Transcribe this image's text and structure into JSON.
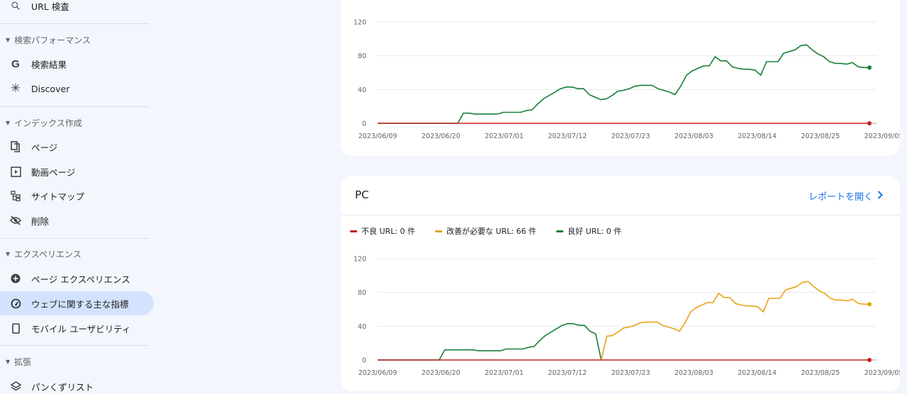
{
  "sidebar": {
    "top_item": {
      "label": "URL 検査",
      "icon": "search-icon"
    },
    "sections": [
      {
        "title": "検索パフォーマンス",
        "items": [
          {
            "label": "検索結果",
            "icon": "google-g-icon"
          },
          {
            "label": "Discover",
            "icon": "asterisk-icon"
          }
        ]
      },
      {
        "title": "インデックス作成",
        "items": [
          {
            "label": "ページ",
            "icon": "pages-icon"
          },
          {
            "label": "動画ページ",
            "icon": "video-page-icon"
          },
          {
            "label": "サイトマップ",
            "icon": "sitemap-icon"
          },
          {
            "label": "削除",
            "icon": "eye-off-icon"
          }
        ]
      },
      {
        "title": "エクスペリエンス",
        "items": [
          {
            "label": "ページ エクスペリエンス",
            "icon": "plus-circle-icon"
          },
          {
            "label": "ウェブに関する主な指標",
            "icon": "speed-gauge-icon",
            "active": true
          },
          {
            "label": "モバイル ユーザビリティ",
            "icon": "phone-icon"
          }
        ]
      },
      {
        "title": "拡張",
        "items": [
          {
            "label": "パンくずリスト",
            "icon": "layers-icon"
          }
        ]
      }
    ]
  },
  "colors": {
    "poor": "#c5221f",
    "needs_improvement": "#e8a317",
    "good": "#188038",
    "accent": "#1a73e8",
    "active_bg": "#d3e3fd"
  },
  "card_pc": {
    "title": "PC",
    "open_report": "レポートを開く",
    "legend": {
      "poor": "不良 URL: 0 件",
      "needs_improvement": "改善が必要な URL: 66 件",
      "good": "良好 URL: 0 件"
    }
  },
  "chart_data": [
    {
      "type": "line",
      "title": "",
      "xlabel": "",
      "ylabel": "",
      "x_ticks": [
        "2023/06/09",
        "2023/06/20",
        "2023/07/01",
        "2023/07/12",
        "2023/07/23",
        "2023/08/03",
        "2023/08/14",
        "2023/08/25",
        "2023/09/05"
      ],
      "ylim": [
        0,
        120
      ],
      "y_ticks": [
        0,
        40,
        80,
        120
      ],
      "grid": true,
      "series": [
        {
          "key": "good",
          "values": [
            0,
            0,
            0,
            0,
            0,
            0,
            0,
            0,
            0,
            0,
            0,
            0,
            0,
            0,
            0,
            12,
            12,
            11,
            11,
            11,
            11,
            11,
            13,
            13,
            13,
            13,
            15,
            16,
            23,
            29,
            33,
            37,
            41,
            43,
            43,
            41,
            41,
            34,
            31,
            28,
            29,
            33,
            38,
            39,
            41,
            44,
            45,
            45,
            45,
            41,
            39,
            37,
            34,
            44,
            57,
            62,
            65,
            68,
            68,
            79,
            74,
            74,
            67,
            65,
            64,
            64,
            63,
            57,
            73,
            73,
            73,
            83,
            85,
            87,
            92,
            93,
            87,
            82,
            79,
            73,
            71,
            71,
            70,
            72,
            67,
            66,
            66
          ]
        },
        {
          "key": "poor",
          "values": [
            0,
            0,
            0,
            0,
            0,
            0,
            0,
            0,
            0,
            0,
            0,
            0,
            0,
            0,
            0,
            0,
            0,
            0,
            0,
            0,
            0,
            0,
            0,
            0,
            0,
            0,
            0,
            0,
            0,
            0,
            0,
            0,
            0,
            0,
            0,
            0,
            0,
            0,
            0,
            0,
            0,
            0,
            0,
            0,
            0,
            0,
            0,
            0,
            0,
            0,
            0,
            0,
            0,
            0,
            0,
            0,
            0,
            0,
            0,
            0,
            0,
            0,
            0,
            0,
            0,
            0,
            0,
            0,
            0,
            0,
            0,
            0,
            0,
            0,
            0,
            0,
            0,
            0,
            0,
            0,
            0,
            0,
            0,
            0,
            0,
            0,
            0
          ]
        }
      ]
    },
    {
      "type": "line",
      "title": "",
      "xlabel": "",
      "ylabel": "",
      "x_ticks": [
        "2023/06/09",
        "2023/06/20",
        "2023/07/01",
        "2023/07/12",
        "2023/07/23",
        "2023/08/03",
        "2023/08/14",
        "2023/08/25",
        "2023/09/05"
      ],
      "ylim": [
        0,
        120
      ],
      "y_ticks": [
        0,
        40,
        80,
        120
      ],
      "grid": true,
      "series": [
        {
          "key": "good",
          "values": [
            0,
            0,
            0,
            0,
            0,
            0,
            0,
            0,
            0,
            0,
            0,
            0,
            12,
            12,
            12,
            12,
            12,
            12,
            11,
            11,
            11,
            11,
            11,
            13,
            13,
            13,
            13,
            15,
            16,
            23,
            29,
            33,
            37,
            41,
            43,
            43,
            41,
            41,
            34,
            31,
            0
          ]
        },
        {
          "key": "needs_improvement",
          "x_start_index": 40,
          "values": [
            0,
            28,
            29,
            33,
            38,
            39,
            41,
            44,
            45,
            45,
            45,
            41,
            39,
            37,
            34,
            44,
            57,
            62,
            65,
            68,
            68,
            79,
            74,
            74,
            67,
            65,
            64,
            64,
            63,
            57,
            73,
            73,
            73,
            83,
            85,
            87,
            92,
            93,
            87,
            82,
            79,
            73,
            71,
            71,
            70,
            72,
            67,
            66,
            66
          ]
        },
        {
          "key": "poor",
          "values": [
            0,
            0,
            0,
            0,
            0,
            0,
            0,
            0,
            0,
            0,
            0,
            0,
            0,
            0,
            0,
            0,
            0,
            0,
            0,
            0,
            0,
            0,
            0,
            0,
            0,
            0,
            0,
            0,
            0,
            0,
            0,
            0,
            0,
            0,
            0,
            0,
            0,
            0,
            0,
            0,
            0,
            0,
            0,
            0,
            0,
            0,
            0,
            0,
            0,
            0,
            0,
            0,
            0,
            0,
            0,
            0,
            0,
            0,
            0,
            0,
            0,
            0,
            0,
            0,
            0,
            0,
            0,
            0,
            0,
            0,
            0,
            0,
            0,
            0,
            0,
            0,
            0,
            0,
            0,
            0,
            0,
            0,
            0,
            0,
            0,
            0,
            0,
            0,
            0
          ]
        }
      ]
    }
  ]
}
